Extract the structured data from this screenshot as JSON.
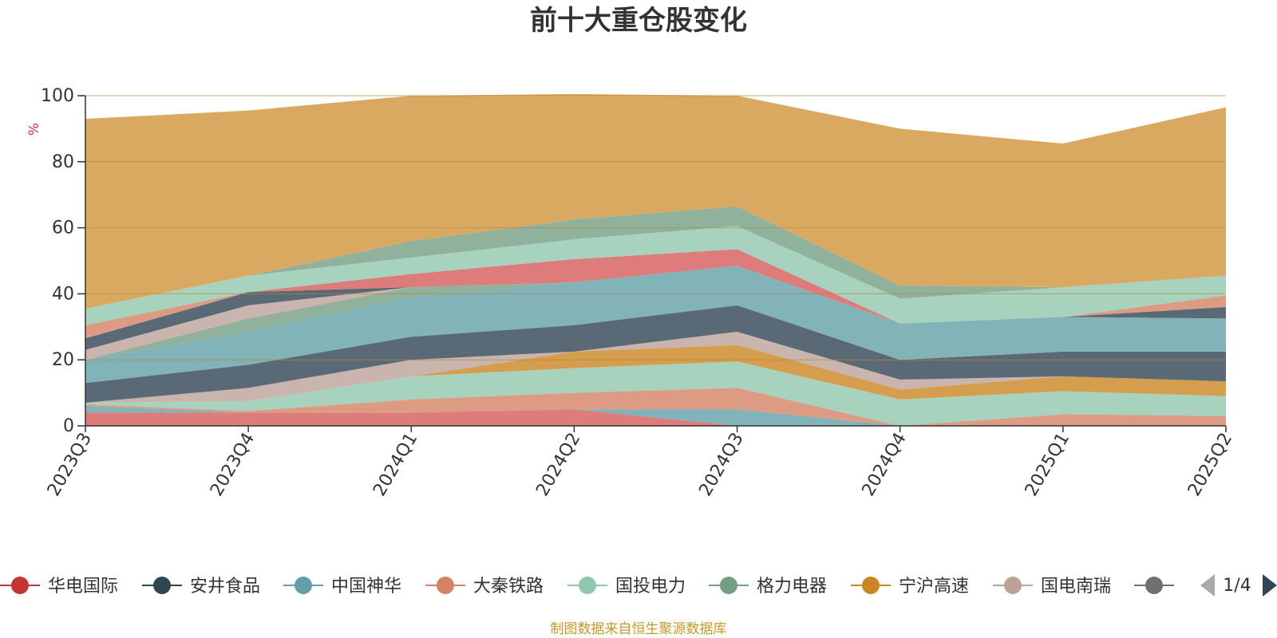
{
  "colors": {
    "华电国际": "#d65b5b",
    "安井食品": "#2f4554",
    "中国神华": "#61a0a8",
    "大秦铁路": "#d48265",
    "国投电力": "#91c7ae",
    "格力电器": "#749f83",
    "宁沪高速": "#ca8622",
    "国电南瑞": "#bda29a",
    "other_grey": "#6e7074",
    "other_light": "#c4ccd3",
    "background_band": "#d9a962"
  },
  "chart_data": {
    "type": "area",
    "title": "前十大重仓股变化",
    "ylabel": "%",
    "ylim": [
      0,
      100
    ],
    "yticks": [
      0,
      20,
      40,
      60,
      80,
      100
    ],
    "categories": [
      "2023Q3",
      "2023Q4",
      "2024Q1",
      "2024Q2",
      "2024Q3",
      "2024Q4",
      "2025Q1",
      "2025Q2"
    ],
    "series": [
      {
        "name": "华电国际",
        "values": [
          4.0,
          4.0,
          4.0,
          5.0,
          0.0,
          0.0,
          0.0,
          0.0
        ]
      },
      {
        "name": "中国神华",
        "values": [
          2.0,
          0.0,
          0.0,
          0.0,
          5.0,
          0.0,
          0.0,
          0.0
        ]
      },
      {
        "name": "大秦铁路",
        "values": [
          0.5,
          0.5,
          4.0,
          5.0,
          6.5,
          0.0,
          3.5,
          3.0
        ]
      },
      {
        "name": "国投电力",
        "values": [
          0.5,
          3.0,
          7.0,
          7.5,
          8.0,
          8.0,
          7.0,
          6.0
        ]
      },
      {
        "name": "宁沪高速",
        "values": [
          0.0,
          0.0,
          0.0,
          5.0,
          5.0,
          3.0,
          4.5,
          4.5
        ]
      },
      {
        "name": "国电南瑞",
        "values": [
          0.0,
          4.0,
          5.0,
          0.0,
          4.0,
          3.0,
          0.0,
          0.0
        ]
      },
      {
        "name": "安井食品",
        "values": [
          6.0,
          7.0,
          7.0,
          8.0,
          8.0,
          6.0,
          7.5,
          9.0
        ]
      },
      {
        "name": "中国神华",
        "values": [
          7.0,
          10.0,
          12.0,
          13.0,
          12.0,
          11.0,
          10.5,
          10.0
        ]
      },
      {
        "name": "格力电器",
        "values": [
          0.0,
          4.0,
          3.0,
          0.0,
          0.0,
          0.0,
          0.0,
          0.0
        ]
      },
      {
        "name": "国电南瑞",
        "values": [
          3.0,
          4.0,
          0.0,
          0.0,
          0.0,
          0.0,
          0.0,
          0.0
        ]
      },
      {
        "name": "安井食品",
        "values": [
          3.5,
          4.0,
          0.0,
          0.0,
          0.0,
          0.0,
          0.0,
          3.5
        ]
      },
      {
        "name": "大秦铁路",
        "values": [
          4.0,
          0.0,
          0.0,
          0.0,
          0.0,
          0.0,
          0.0,
          3.5
        ]
      },
      {
        "name": "华电国际",
        "values": [
          0.0,
          0.0,
          4.0,
          7.0,
          5.0,
          0.0,
          0.0,
          0.0
        ]
      },
      {
        "name": "国投电力",
        "values": [
          5.0,
          5.0,
          5.0,
          6.0,
          7.0,
          7.5,
          9.0,
          6.0
        ]
      },
      {
        "name": "格力电器",
        "values": [
          0.0,
          0.0,
          5.0,
          6.0,
          6.0,
          4.0,
          0.0,
          0.0
        ]
      },
      {
        "name": "宁沪高速",
        "values": [
          57.5,
          50.0,
          44.0,
          38.0,
          33.5,
          47.5,
          43.5,
          51.0
        ]
      }
    ]
  },
  "legend": {
    "items": [
      {
        "name": "华电国际",
        "color": "#c23531"
      },
      {
        "name": "安井食品",
        "color": "#2f4554"
      },
      {
        "name": "中国神华",
        "color": "#61a0a8"
      },
      {
        "name": "大秦铁路",
        "color": "#d48265"
      },
      {
        "name": "国投电力",
        "color": "#91c7ae"
      },
      {
        "name": "格力电器",
        "color": "#749f83"
      },
      {
        "name": "宁沪高速",
        "color": "#ca8622"
      },
      {
        "name": "国电南瑞",
        "color": "#bda29a"
      },
      {
        "name": "",
        "color": "#6e7074"
      }
    ],
    "page": "1/4"
  },
  "source_note": "制图数据来自恒生聚源数据库"
}
